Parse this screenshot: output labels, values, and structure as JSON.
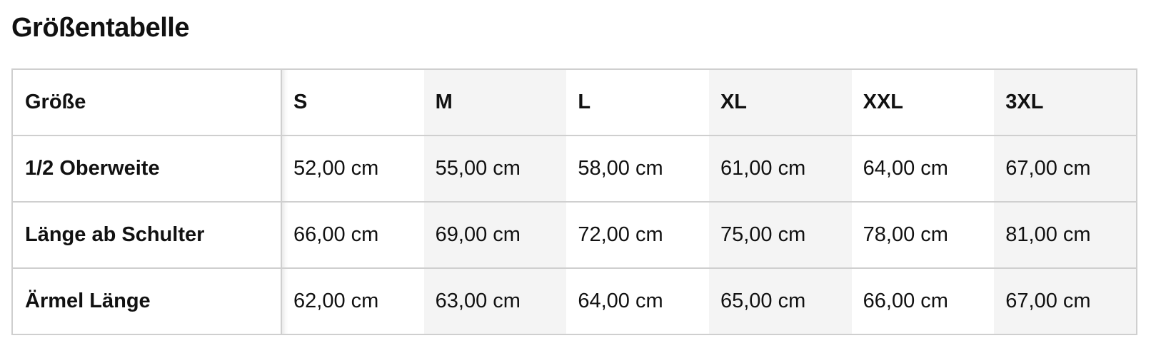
{
  "title": "Größentabelle",
  "table": {
    "header": {
      "label": "Größe",
      "sizes": [
        "S",
        "M",
        "L",
        "XL",
        "XXL",
        "3XL"
      ]
    },
    "rows": [
      {
        "label": "1/2 Oberweite",
        "values": [
          "52,00 cm",
          "55,00 cm",
          "58,00 cm",
          "61,00 cm",
          "64,00 cm",
          "67,00 cm"
        ]
      },
      {
        "label": "Länge ab Schulter",
        "values": [
          "66,00 cm",
          "69,00 cm",
          "72,00 cm",
          "75,00 cm",
          "78,00 cm",
          "81,00 cm"
        ]
      },
      {
        "label": "Ärmel Länge",
        "values": [
          "62,00 cm",
          "63,00 cm",
          "64,00 cm",
          "65,00 cm",
          "66,00 cm",
          "67,00 cm"
        ]
      }
    ]
  },
  "colors": {
    "border": "#cfcfcf",
    "alt_column": "#f4f4f4",
    "text": "#111111"
  }
}
